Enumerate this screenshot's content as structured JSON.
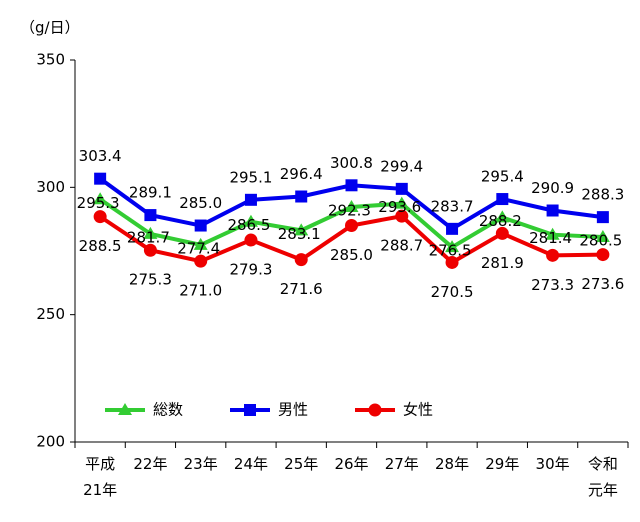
{
  "chart_data": {
    "type": "line",
    "y_axis_label": "（g/日）",
    "categories": [
      "平成\n21年",
      "22年",
      "23年",
      "24年",
      "25年",
      "26年",
      "27年",
      "28年",
      "29年",
      "30年",
      "令和\n元年"
    ],
    "series": [
      {
        "name": "総数",
        "color": "#33cc33",
        "marker": "triangle",
        "values": [
          295.3,
          281.7,
          277.4,
          286.5,
          283.1,
          292.3,
          293.6,
          276.5,
          288.2,
          281.4,
          280.5
        ],
        "value_labels": [
          "295.3",
          "281.7",
          "277.4",
          "286.5",
          "283.1",
          "292.3",
          "293.6",
          "276.5",
          "288.2",
          "281.4",
          "280.5"
        ]
      },
      {
        "name": "男性",
        "color": "#0000ee",
        "marker": "square",
        "values": [
          303.4,
          289.1,
          285.0,
          295.1,
          296.4,
          300.8,
          299.4,
          283.7,
          295.4,
          290.9,
          288.3
        ],
        "value_labels": [
          "303.4",
          "289.1",
          "285.0",
          "295.1",
          "296.4",
          "300.8",
          "299.4",
          "283.7",
          "295.4",
          "290.9",
          "288.3"
        ]
      },
      {
        "name": "女性",
        "color": "#ee0000",
        "marker": "circle",
        "values": [
          288.5,
          275.3,
          271.0,
          279.3,
          271.6,
          285.0,
          288.7,
          270.5,
          281.9,
          273.3,
          273.6
        ],
        "value_labels": [
          "288.5",
          "275.3",
          "271.0",
          "279.3",
          "271.6",
          "285.0",
          "288.7",
          "270.5",
          "281.9",
          "273.3",
          "273.6"
        ]
      }
    ],
    "ylim": [
      200,
      350
    ],
    "yticks": [
      200,
      250,
      300,
      350
    ],
    "grid": false
  }
}
